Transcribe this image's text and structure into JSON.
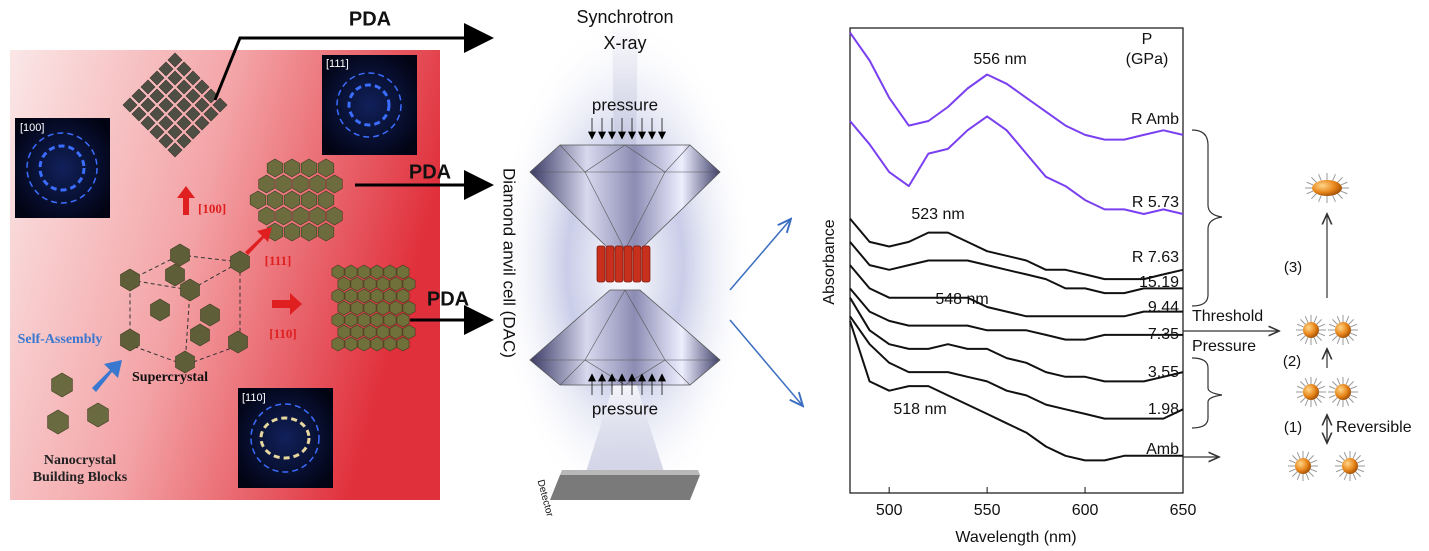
{
  "left_panel": {
    "pda_labels": [
      "PDA",
      "PDA",
      "PDA"
    ],
    "inset_labels": [
      "[100]",
      "[111]",
      "[110]"
    ],
    "direction_labels": [
      "[100]",
      "[111]",
      "[110]"
    ],
    "self_assembly": "Self-Assembly",
    "supercrystal": "Supercrystal",
    "building_blocks": "Nanocrystal Building Blocks"
  },
  "middle_panel": {
    "source_line1": "Synchrotron",
    "source_line2": "X-ray",
    "pressure_top": "pressure",
    "pressure_bottom": "pressure",
    "cell_label": "Diamond anvil cell (DAC)",
    "detector": "Detector"
  },
  "chart_data": {
    "type": "line",
    "x_label": "Wavelength (nm)",
    "y_label": "Absorbance",
    "legend_title": "P (GPa)",
    "annotations": [
      "556 nm",
      "523 nm",
      "548 nm",
      "518 nm"
    ],
    "x": [
      480,
      490,
      500,
      510,
      520,
      530,
      540,
      550,
      560,
      570,
      580,
      590,
      600,
      610,
      620,
      630,
      640,
      650
    ],
    "xlim": [
      480,
      650
    ],
    "xticks": [
      500,
      550,
      600,
      650
    ],
    "ylim": [
      0,
      10
    ],
    "series": [
      {
        "name": "R Amb",
        "color": "#7a3ff0",
        "values": [
          9.9,
          9.3,
          8.5,
          7.9,
          8.0,
          8.3,
          8.7,
          9.0,
          8.8,
          8.5,
          8.2,
          7.9,
          7.7,
          7.6,
          7.6,
          7.7,
          7.8,
          7.7
        ]
      },
      {
        "name": "R 5.73",
        "color": "#7a3ff0",
        "values": [
          8.0,
          7.5,
          6.9,
          6.6,
          7.3,
          7.4,
          7.8,
          8.1,
          7.8,
          7.3,
          6.8,
          6.6,
          6.3,
          6.1,
          6.1,
          6.0,
          6.1,
          6.0
        ]
      },
      {
        "name": "R 7.63",
        "color": "#111111",
        "values": [
          5.9,
          5.4,
          5.3,
          5.4,
          5.6,
          5.6,
          5.4,
          5.2,
          5.1,
          5.0,
          4.8,
          4.8,
          4.7,
          4.6,
          4.6,
          4.6,
          4.7,
          4.8
        ]
      },
      {
        "name": "15.19",
        "color": "#111111",
        "values": [
          5.4,
          4.9,
          4.8,
          4.9,
          5.0,
          5.0,
          5.0,
          4.9,
          4.8,
          4.7,
          4.6,
          4.4,
          4.4,
          4.3,
          4.3,
          4.4,
          4.4,
          4.4
        ]
      },
      {
        "name": "9.44",
        "color": "#111111",
        "values": [
          4.9,
          4.4,
          4.2,
          4.2,
          4.2,
          4.2,
          4.2,
          4.0,
          3.9,
          3.8,
          3.8,
          3.8,
          3.8,
          3.8,
          3.8,
          3.9,
          3.9,
          3.9
        ]
      },
      {
        "name": "7.35",
        "color": "#111111",
        "values": [
          4.4,
          3.9,
          3.7,
          3.6,
          3.6,
          3.6,
          3.6,
          3.5,
          3.5,
          3.5,
          3.4,
          3.3,
          3.3,
          3.4,
          3.4,
          3.4,
          3.4,
          3.4
        ]
      },
      {
        "name": "3.55",
        "color": "#111111",
        "values": [
          4.2,
          3.5,
          3.2,
          3.1,
          3.1,
          3.2,
          3.1,
          3.1,
          2.9,
          2.8,
          2.6,
          2.5,
          2.5,
          2.4,
          2.4,
          2.4,
          2.5,
          2.6
        ]
      },
      {
        "name": "1.98",
        "color": "#111111",
        "values": [
          3.8,
          3.2,
          2.8,
          2.6,
          2.6,
          2.6,
          2.5,
          2.4,
          2.2,
          2.1,
          1.9,
          1.8,
          1.7,
          1.6,
          1.6,
          1.6,
          1.6,
          1.8
        ]
      },
      {
        "name": "Amb",
        "color": "#111111",
        "values": [
          3.7,
          2.4,
          2.2,
          2.3,
          2.3,
          2.1,
          1.9,
          1.7,
          1.5,
          1.3,
          1.0,
          0.8,
          0.7,
          0.7,
          0.8,
          0.8,
          0.8,
          0.8
        ]
      }
    ]
  },
  "right_panel": {
    "threshold_line1": "Threshold",
    "threshold_line2": "Pressure",
    "steps": [
      "(1)",
      "(2)",
      "(3)"
    ],
    "reversible": "Reversible"
  }
}
